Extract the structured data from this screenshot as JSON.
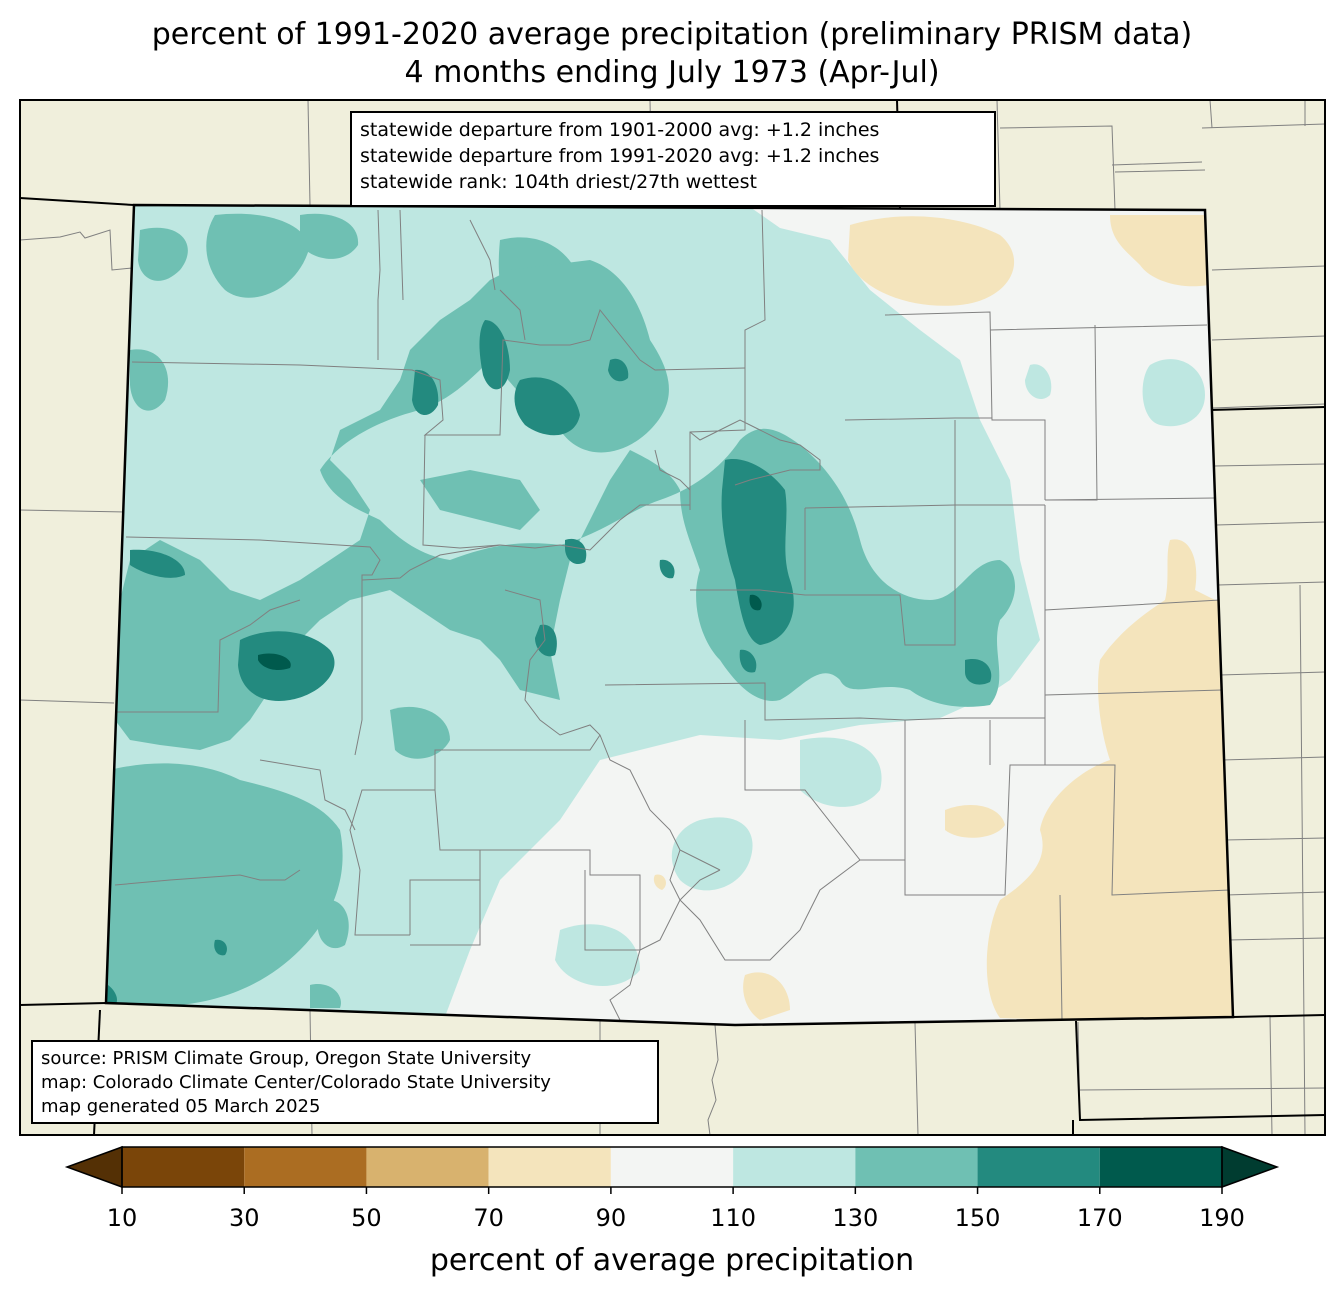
{
  "title": {
    "line1": "percent of 1991-2020 average precipitation (preliminary PRISM data)",
    "line2": "4 months ending July 1973 (Apr-Jul)"
  },
  "stats": {
    "line1": "statewide departure from 1901-2000 avg: +1.2 inches",
    "line2": "statewide departure from 1991-2020 avg: +1.2 inches",
    "line3": "statewide rank: 104th driest/27th wettest"
  },
  "source": {
    "line1": "source: PRISM Climate Group, Oregon State University",
    "line2": "map: Colorado Climate Center/Colorado State University",
    "line3": "map generated 05 March 2025"
  },
  "colorbar": {
    "label": "percent of average precipitation",
    "ticks": [
      "10",
      "30",
      "50",
      "70",
      "90",
      "110",
      "130",
      "150",
      "170",
      "190"
    ],
    "under_color": "#543005",
    "over_color": "#003c30",
    "bins": [
      {
        "min": 10,
        "max": 30,
        "color": "#7a4509"
      },
      {
        "min": 30,
        "max": 50,
        "color": "#ab6d22"
      },
      {
        "min": 50,
        "max": 70,
        "color": "#d8b26e"
      },
      {
        "min": 70,
        "max": 90,
        "color": "#f4e4bc"
      },
      {
        "min": 90,
        "max": 110,
        "color": "#f3f5f3"
      },
      {
        "min": 110,
        "max": 130,
        "color": "#bee7e1"
      },
      {
        "min": 130,
        "max": 150,
        "color": "#6fc0b3"
      },
      {
        "min": 150,
        "max": 170,
        "color": "#238a7f"
      },
      {
        "min": 170,
        "max": 190,
        "color": "#005a4d"
      }
    ]
  },
  "map_colors": {
    "background_land": "#f0efdc",
    "county_lines": "#808080",
    "state_lines": "#000000"
  }
}
